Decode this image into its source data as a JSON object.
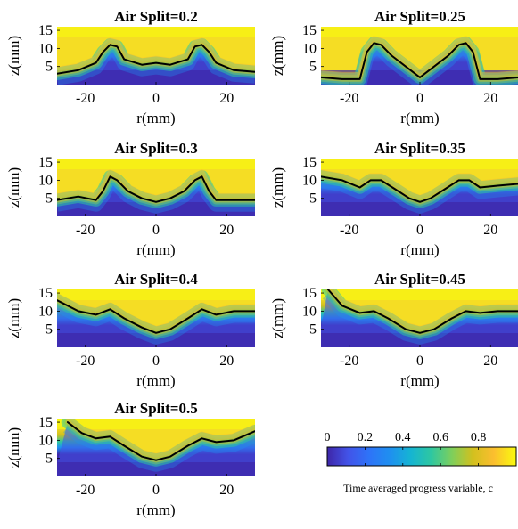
{
  "figure": {
    "colorbar": {
      "label": "Time averaged progress variable, c",
      "ticks": [
        "0",
        "0.2",
        "0.4",
        "0.6",
        "0.8"
      ],
      "tick_values": [
        0,
        0.2,
        0.4,
        0.6,
        0.8
      ],
      "range": [
        0,
        1
      ],
      "colormap": "parula",
      "colors": [
        "#3e26a8",
        "#4253e8",
        "#1f8ff0",
        "#15b4d3",
        "#2ec7a1",
        "#7ecf5c",
        "#d2c01e",
        "#fbbe2f",
        "#f5dd24",
        "#f9fb0e"
      ]
    }
  },
  "chart_data": [
    {
      "type": "heatmap",
      "title": "Air Split=0.2",
      "xlabel": "r(mm)",
      "ylabel": "z(mm)",
      "xlim": [
        -28,
        28
      ],
      "ylim": [
        0,
        16
      ],
      "xticks": [
        -20,
        0,
        20
      ],
      "yticks": [
        5,
        10,
        15
      ],
      "x": [
        -28,
        -22,
        -17,
        -15,
        -13,
        -11,
        -9,
        -4,
        0,
        4,
        9,
        11,
        13,
        15,
        17,
        22,
        28
      ],
      "flame_contour_c05": [
        3,
        4,
        6,
        9,
        11,
        10.5,
        7,
        5.5,
        6,
        5.5,
        7,
        10.5,
        11,
        9,
        6,
        4,
        3.5
      ]
    },
    {
      "type": "heatmap",
      "title": "Air Split=0.25",
      "xlabel": "r(mm)",
      "ylabel": "z(mm)",
      "xlim": [
        -28,
        28
      ],
      "ylim": [
        0,
        16
      ],
      "xticks": [
        -20,
        0,
        20
      ],
      "yticks": [
        5,
        10,
        15
      ],
      "x": [
        -28,
        -22,
        -17,
        -15,
        -13,
        -11,
        -8,
        -4,
        0,
        4,
        8,
        11,
        13,
        15,
        17,
        22,
        28
      ],
      "flame_contour_c05": [
        2,
        1.5,
        1.5,
        9,
        11.5,
        11,
        8,
        5,
        2,
        5,
        8,
        11,
        11.5,
        9,
        1.5,
        1.5,
        2
      ]
    },
    {
      "type": "heatmap",
      "title": "Air Split=0.3",
      "xlabel": "r(mm)",
      "ylabel": "z(mm)",
      "xlim": [
        -28,
        28
      ],
      "ylim": [
        0,
        16
      ],
      "xticks": [
        -20,
        0,
        20
      ],
      "yticks": [
        5,
        10,
        15
      ],
      "x": [
        -28,
        -22,
        -17,
        -15,
        -13,
        -11,
        -8,
        -4,
        0,
        4,
        8,
        11,
        13,
        15,
        17,
        22,
        28
      ],
      "flame_contour_c05": [
        4.5,
        5.5,
        4.5,
        7,
        11,
        10,
        7,
        5,
        4,
        5,
        7,
        10,
        11,
        7,
        4.5,
        4.5,
        4.5
      ]
    },
    {
      "type": "heatmap",
      "title": "Air Split=0.35",
      "xlabel": "r(mm)",
      "ylabel": "z(mm)",
      "xlim": [
        -28,
        28
      ],
      "ylim": [
        0,
        16
      ],
      "xticks": [
        -20,
        0,
        20
      ],
      "yticks": [
        5,
        10,
        15
      ],
      "x": [
        -28,
        -22,
        -17,
        -14,
        -11,
        -7,
        -3,
        0,
        3,
        7,
        11,
        14,
        17,
        22,
        28
      ],
      "flame_contour_c05": [
        11,
        10,
        8,
        10,
        10,
        7.5,
        5,
        4,
        5,
        7.5,
        10,
        10,
        8,
        8.5,
        9
      ]
    },
    {
      "type": "heatmap",
      "title": "Air Split=0.4",
      "xlabel": "r(mm)",
      "ylabel": "z(mm)",
      "xlim": [
        -28,
        28
      ],
      "ylim": [
        0,
        16
      ],
      "xticks": [
        -20,
        0,
        20
      ],
      "yticks": [
        5,
        10,
        15
      ],
      "x": [
        -28,
        -22,
        -17,
        -13,
        -9,
        -4,
        0,
        4,
        9,
        13,
        17,
        22,
        28
      ],
      "flame_contour_c05": [
        13,
        10,
        9,
        10.5,
        8,
        5.5,
        4,
        5,
        8,
        10.5,
        9,
        10,
        10
      ]
    },
    {
      "type": "heatmap",
      "title": "Air Split=0.45",
      "xlabel": "r(mm)",
      "ylabel": "z(mm)",
      "xlim": [
        -28,
        28
      ],
      "ylim": [
        0,
        16
      ],
      "xticks": [
        -20,
        0,
        20
      ],
      "yticks": [
        5,
        10,
        15
      ],
      "x": [
        -26,
        -22,
        -17,
        -13,
        -9,
        -4,
        0,
        4,
        9,
        13,
        17,
        22,
        28
      ],
      "flame_contour_c05": [
        16,
        11.5,
        9.5,
        10,
        8,
        5,
        4,
        5,
        8,
        10,
        9.5,
        10,
        10
      ]
    },
    {
      "type": "heatmap",
      "title": "Air Split=0.5",
      "xlabel": "r(mm)",
      "ylabel": "z(mm)",
      "xlim": [
        -28,
        28
      ],
      "ylim": [
        0,
        16
      ],
      "xticks": [
        -20,
        0,
        20
      ],
      "yticks": [
        5,
        10,
        15
      ],
      "x": [
        -25,
        -21,
        -17,
        -13,
        -9,
        -4,
        0,
        4,
        9,
        13,
        17,
        22,
        28
      ],
      "flame_contour_c05": [
        15,
        12,
        10.5,
        11,
        8.5,
        5.5,
        4.5,
        5.5,
        8.5,
        10.5,
        9.5,
        10,
        12.5
      ]
    }
  ]
}
